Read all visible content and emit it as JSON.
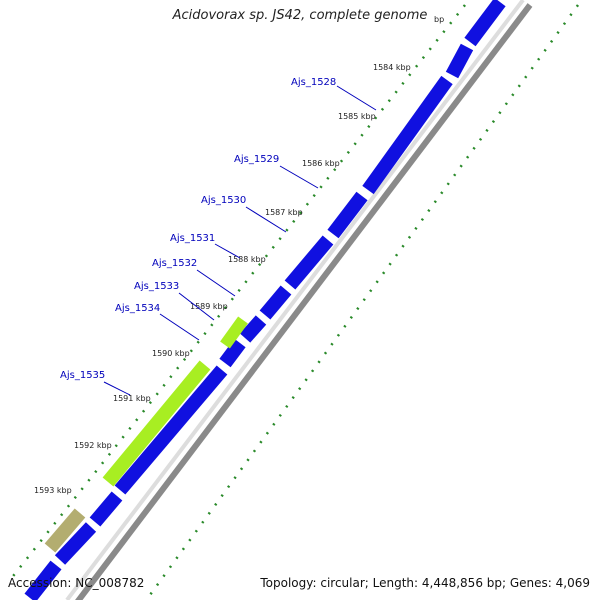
{
  "title": "Acidovorax sp. JS42, complete genome",
  "accession": "Accession: NC_008782",
  "summary": "Topology: circular; Length: 4,448,856 bp; Genes: 4,069",
  "colors": {
    "cds": "#1010e0",
    "cds_highlight": "#a8ee22",
    "cds_other": "#b3ad70",
    "guide": "#2a8a2a",
    "label": "#0000bb"
  },
  "scale_labels": [
    "1584 kbp",
    "1585 kbp",
    "1586 kbp",
    "1587 kbp",
    "1588 kbp",
    "1589 kbp",
    "1590 kbp",
    "1591 kbp",
    "1592 kbp",
    "1593 kbp"
  ],
  "gene_labels": [
    "Ajs_1528",
    "Ajs_1529",
    "Ajs_1530",
    "Ajs_1531",
    "Ajs_1532",
    "Ajs_1533",
    "Ajs_1534",
    "Ajs_1535"
  ]
}
